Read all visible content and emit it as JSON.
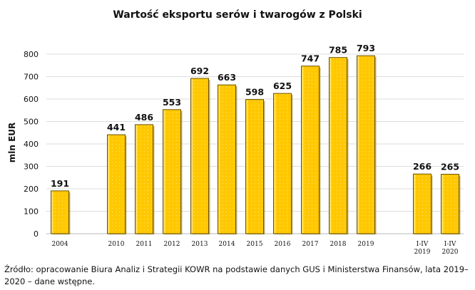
{
  "chart_data": {
    "type": "bar",
    "title": "Wartość eksportu serów i twarogów z Polski",
    "xlabel": "",
    "ylabel": "mln EUR",
    "ylim": [
      0,
      800
    ],
    "yticks": [
      0,
      100,
      200,
      300,
      400,
      500,
      600,
      700,
      800
    ],
    "grid": true,
    "legend": "none",
    "bar_color": "#FFC800",
    "bar_edge_color": "#6B5300",
    "categories": [
      [
        "2004"
      ],
      [
        "2010"
      ],
      [
        "2011"
      ],
      [
        "2012"
      ],
      [
        "2013"
      ],
      [
        "2014"
      ],
      [
        "2015"
      ],
      [
        "2016"
      ],
      [
        "2017"
      ],
      [
        "2018"
      ],
      [
        "2019"
      ],
      [
        "I-IV",
        "2019"
      ],
      [
        "I-IV",
        "2020"
      ]
    ],
    "values": [
      191,
      441,
      486,
      553,
      692,
      663,
      598,
      625,
      747,
      785,
      793,
      266,
      265
    ],
    "data_labels": [
      "191",
      "441",
      "486",
      "553",
      "692",
      "663",
      "598",
      "625",
      "747",
      "785",
      "793",
      "266",
      "265"
    ]
  },
  "source": "Źródło: opracowanie Biura Analiz i Strategii KOWR na podstawie danych GUS i Ministerstwa Finansów, lata 2019–2020 – dane wstępne."
}
